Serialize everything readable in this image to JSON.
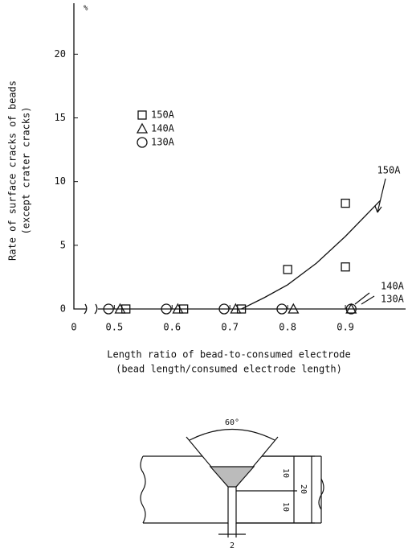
{
  "chart_data": {
    "type": "scatter",
    "y_label": "Rate of surface cracks of beads",
    "y_label_2": "(except crater cracks)",
    "y_unit": "%",
    "x_label": "Length ratio of bead-to-consumed electrode",
    "x_label_2": "(bead length/consumed electrode length)",
    "x_origin_label": "0",
    "xlim": [
      0.43,
      1.0
    ],
    "xticks": [
      0.5,
      0.6,
      0.7,
      0.8,
      0.9
    ],
    "ylim": [
      0,
      24
    ],
    "yticks": [
      0,
      5,
      10,
      15,
      20
    ],
    "color": "#111111",
    "series": [
      {
        "name": "150A",
        "marker": "square",
        "x": [
          0.52,
          0.62,
          0.72,
          0.8,
          0.9,
          0.9
        ],
        "values": [
          0,
          0,
          0,
          3.1,
          8.3,
          3.3
        ]
      },
      {
        "name": "140A",
        "marker": "triangle",
        "x": [
          0.51,
          0.61,
          0.71,
          0.81,
          0.91
        ],
        "values": [
          0,
          0,
          0,
          0,
          0
        ]
      },
      {
        "name": "130A",
        "marker": "circle",
        "x": [
          0.49,
          0.59,
          0.69,
          0.79,
          0.91
        ],
        "values": [
          0,
          0,
          0,
          0,
          0
        ]
      }
    ],
    "curve": {
      "label": "150A",
      "x": [
        0.72,
        0.76,
        0.8,
        0.85,
        0.9,
        0.96
      ],
      "values": [
        0,
        0.9,
        1.9,
        3.6,
        5.7,
        8.5
      ]
    },
    "annotations": [
      "140A",
      "130A"
    ]
  },
  "diagram": {
    "angle": "60°",
    "depth_top": "10",
    "depth_bottom": "10",
    "thickness": "20",
    "gap": "2"
  }
}
